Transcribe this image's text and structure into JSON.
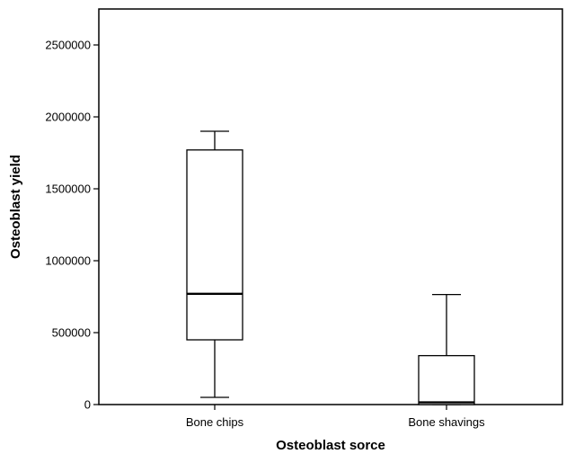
{
  "chart_data": {
    "type": "box",
    "title": "",
    "xlabel": "Osteoblast sorce",
    "ylabel": "Osteoblast yield",
    "ylim": [
      0,
      2750000
    ],
    "yticks": [
      0,
      500000,
      1000000,
      1500000,
      2000000,
      2500000
    ],
    "ytick_labels": [
      "0",
      "500000",
      "1000000",
      "1500000",
      "2000000",
      "2500000"
    ],
    "grid": false,
    "legend": "none",
    "categories": [
      "Bone chips",
      "Bone shavings"
    ],
    "boxes": [
      {
        "category": "Bone chips",
        "min": 50000,
        "q1": 450000,
        "median": 770000,
        "q3": 1770000,
        "max": 1900000
      },
      {
        "category": "Bone shavings",
        "min": 0,
        "q1": 0,
        "median": 15000,
        "q3": 340000,
        "max": 765000
      }
    ]
  }
}
